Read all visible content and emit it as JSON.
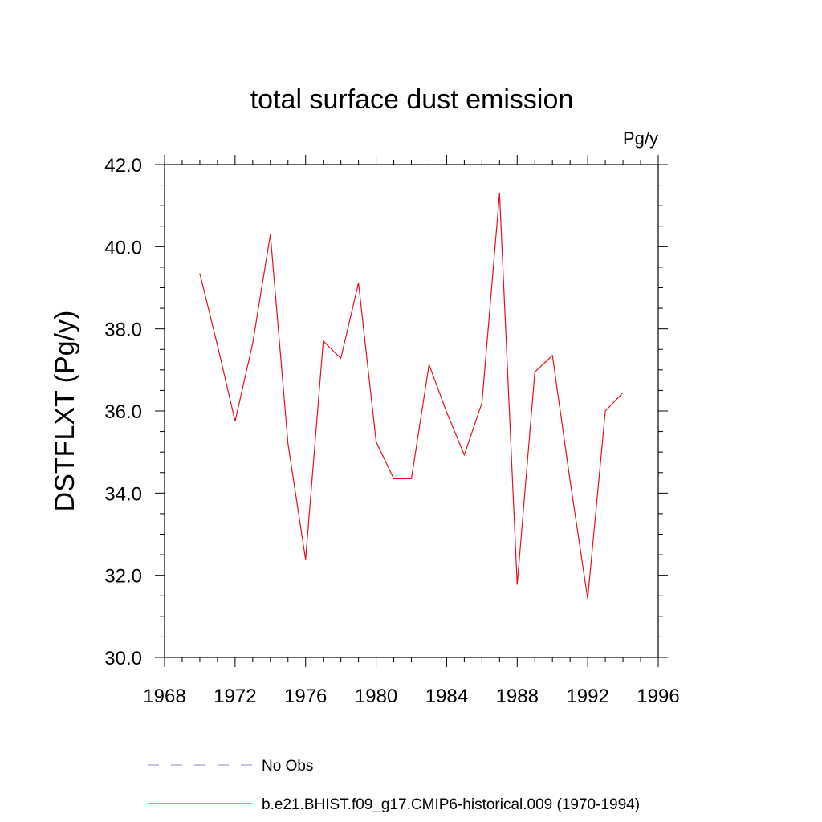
{
  "chart_data": {
    "type": "line",
    "title": "total surface dust emission",
    "units": "Pg/y",
    "xlabel": "",
    "ylabel": "DSTFLXT  (Pg/y)",
    "xlim": [
      1968,
      1996
    ],
    "ylim": [
      30.0,
      42.0
    ],
    "x_ticks": [
      1968,
      1972,
      1976,
      1980,
      1984,
      1988,
      1992,
      1996
    ],
    "x_tick_labels": [
      "1968",
      "1972",
      "1976",
      "1980",
      "1984",
      "1988",
      "1992",
      "1996"
    ],
    "y_ticks": [
      30.0,
      32.0,
      34.0,
      36.0,
      38.0,
      40.0,
      42.0
    ],
    "y_tick_labels": [
      "30.0",
      "32.0",
      "34.0",
      "36.0",
      "38.0",
      "40.0",
      "42.0"
    ],
    "grid": false,
    "legend_position": "bottom",
    "series": [
      {
        "name": "b.e21.BHIST.f09_g17.CMIP6-historical.009 (1970-1994)",
        "color": "#e8101a",
        "style": "solid",
        "x": [
          1970,
          1971,
          1972,
          1973,
          1974,
          1975,
          1976,
          1977,
          1978,
          1979,
          1980,
          1981,
          1982,
          1983,
          1984,
          1985,
          1986,
          1987,
          1988,
          1989,
          1990,
          1991,
          1992,
          1993,
          1994
        ],
        "y": [
          39.35,
          37.6,
          35.75,
          37.65,
          40.3,
          35.2,
          32.38,
          37.7,
          37.28,
          39.12,
          35.25,
          34.35,
          34.35,
          37.13,
          35.97,
          34.93,
          36.2,
          41.3,
          31.77,
          36.95,
          37.35,
          34.3,
          31.43,
          36.0,
          36.45
        ]
      }
    ],
    "legend": [
      {
        "label": "No Obs",
        "color": "#8f86c8",
        "style": "dashed"
      },
      {
        "label": "b.e21.BHIST.f09_g17.CMIP6-historical.009 (1970-1994)",
        "color": "#e8101a",
        "style": "solid"
      }
    ]
  }
}
